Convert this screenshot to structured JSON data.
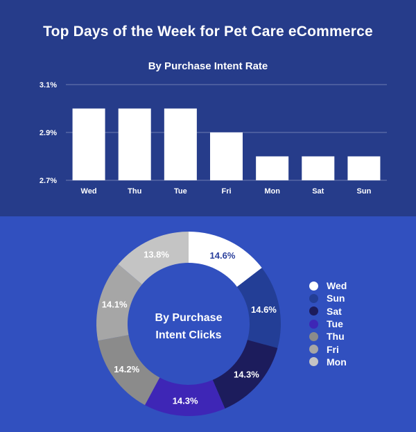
{
  "title": "Top Days of the Week for Pet Care eCommerce",
  "chart_data": [
    {
      "type": "bar",
      "title": "By Purchase Intent Rate",
      "categories": [
        "Wed",
        "Thu",
        "Tue",
        "Fri",
        "Mon",
        "Sat",
        "Sun"
      ],
      "values": [
        3.0,
        3.0,
        3.0,
        2.9,
        2.8,
        2.8,
        2.8
      ],
      "ylim": [
        2.7,
        3.1
      ],
      "yticks": [
        "2.7%",
        "2.9%",
        "3.1%"
      ],
      "ytick_values": [
        2.7,
        2.9,
        3.1
      ],
      "grid": true,
      "bar_color": "#ffffff",
      "xlabel": "",
      "ylabel": ""
    },
    {
      "type": "pie",
      "donut": true,
      "center_label": [
        "By Purchase",
        "Intent Clicks"
      ],
      "slices": [
        {
          "label": "Wed",
          "value": 14.6,
          "display": "14.6%",
          "color": "#ffffff",
          "text_color": "#2a3f9c"
        },
        {
          "label": "Sun",
          "value": 14.6,
          "display": "14.6%",
          "color": "#233e96",
          "text_color": "#ffffff"
        },
        {
          "label": "Sat",
          "value": 14.3,
          "display": "14.3%",
          "color": "#1c1c5c",
          "text_color": "#ffffff"
        },
        {
          "label": "Tue",
          "value": 14.3,
          "display": "14.3%",
          "color": "#3e26b6",
          "text_color": "#ffffff"
        },
        {
          "label": "Thu",
          "value": 14.2,
          "display": "14.2%",
          "color": "#8b8b8b",
          "text_color": "#ffffff"
        },
        {
          "label": "Fri",
          "value": 14.1,
          "display": "14.1%",
          "color": "#a6a6a6",
          "text_color": "#ffffff"
        },
        {
          "label": "Mon",
          "value": 13.8,
          "display": "13.8%",
          "color": "#c4c4c4",
          "text_color": "#ffffff"
        }
      ],
      "legend": "right"
    }
  ]
}
